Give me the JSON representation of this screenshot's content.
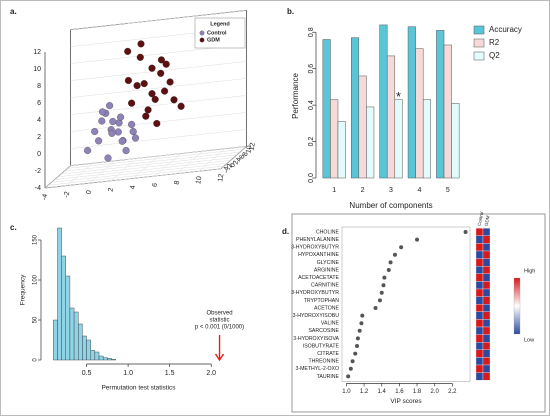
{
  "chart_data": [
    {
      "type": "scatter3d",
      "panel_label": "a.",
      "series": [
        {
          "name": "GDM",
          "color": "#5c1010",
          "x": [
            3,
            4,
            5,
            6,
            3.5,
            4.5,
            5.5,
            7,
            2.5,
            6.5,
            4,
            5,
            3,
            6,
            7.5,
            4,
            5,
            3.5,
            6,
            5
          ],
          "y": [
            2,
            3,
            1,
            2,
            4,
            2,
            3,
            1,
            3,
            2,
            4,
            1,
            0,
            3,
            2,
            1,
            4,
            2,
            0,
            3
          ],
          "values": [
            4,
            6,
            8,
            5,
            9,
            3,
            7,
            4,
            10,
            6,
            2,
            5,
            7,
            8,
            3,
            11,
            1,
            6,
            9,
            4
          ]
        },
        {
          "name": "Control",
          "color": "#8f82b8",
          "x": [
            0,
            1,
            2,
            -1,
            1.5,
            3,
            0.5,
            2.5,
            1,
            -0.5,
            2,
            3.5,
            0,
            1,
            2,
            1.5,
            0.5,
            2.5,
            3,
            1
          ],
          "y": [
            2,
            3,
            1,
            2,
            4,
            2,
            3,
            0,
            1,
            3,
            2,
            1,
            4,
            2,
            3,
            0,
            1,
            2,
            3,
            4
          ],
          "values": [
            0,
            1,
            2,
            -1,
            0.5,
            1.5,
            3,
            0,
            -2,
            1,
            2.5,
            0,
            2,
            4,
            -0.5,
            1,
            3.5,
            -1.5,
            0.5,
            1.8
          ]
        }
      ],
      "legend_title": "Legend",
      "xlim": [
        -4,
        12
      ],
      "xticks": [
        -4,
        -2,
        0,
        2,
        4,
        6,
        8,
        10,
        12
      ],
      "ylim": [
        -4,
        12
      ],
      "yticks": [
        -4,
        -2,
        0,
        2,
        4,
        6,
        8,
        10,
        12
      ],
      "zlim": [
        -4,
        12
      ],
      "zticks": [
        -4,
        -2,
        0,
        2,
        4,
        6,
        8,
        10,
        12
      ]
    },
    {
      "type": "bar",
      "panel_label": "b.",
      "categories": [
        "1",
        "2",
        "3",
        "4",
        "5"
      ],
      "series": [
        {
          "name": "Accuracy",
          "color": "#5bc5d8",
          "values": [
            0.76,
            0.77,
            0.84,
            0.83,
            0.81
          ]
        },
        {
          "name": "R2",
          "color": "#f6dada",
          "values": [
            0.43,
            0.56,
            0.67,
            0.71,
            0.73
          ]
        },
        {
          "name": "Q2",
          "color": "#e3fbfb",
          "values": [
            0.31,
            0.39,
            0.43,
            0.43,
            0.41
          ]
        }
      ],
      "annotation": "*",
      "x_label": "Number of components",
      "y_label": "Performance",
      "ylim": [
        0,
        0.9
      ],
      "yticks": [
        {
          "value": 0,
          "label": "0.0"
        },
        0.2,
        0.4,
        0.6,
        0.8
      ]
    },
    {
      "type": "histogram",
      "panel_label": "c.",
      "bins": [
        0.1,
        0.15,
        0.2,
        0.25,
        0.3,
        0.35,
        0.4,
        0.45,
        0.5,
        0.55,
        0.6,
        0.65,
        0.7,
        0.75,
        0.8,
        0.85
      ],
      "values": [
        50,
        165,
        130,
        105,
        65,
        60,
        45,
        30,
        25,
        12,
        10,
        5,
        3,
        2,
        1
      ],
      "color": "#8fd3e6",
      "annotation": {
        "lines": [
          "Observed",
          "statistic",
          "p < 0.001 (0/1000)"
        ],
        "x": 2.1
      },
      "x_label": "Permutation test statistics",
      "y_label": "Frequency",
      "xlim": [
        0,
        2.25
      ],
      "xticks": [
        0.5,
        {
          "value": 1,
          "label": "1.0"
        },
        1.5,
        {
          "value": 2,
          "label": "2.0"
        }
      ],
      "ylim": [
        0,
        175
      ],
      "yticks": [
        0,
        50,
        100,
        150
      ]
    },
    {
      "type": "dot",
      "panel_label": "d.",
      "categories": [
        "CHOLINE",
        "PHENYLALANINE",
        "3-HYDROXYBUTYR",
        "HYPOXANTHINE",
        "GLYCINE",
        "ARGININE",
        "ACETOACETATE",
        "CARNITINE",
        "3-HYDROXYBUTYR",
        "TRYPTOPHAN",
        "ACETONE",
        "3-HYDROXYISOBU",
        "VALINE",
        "SARCOSINE",
        "3-HYDROXYISOVA",
        "ISOBUTYRATE",
        "CITRATE",
        "THREONINE",
        "3-METHYL-2-OXO",
        "TAURINE"
      ],
      "values": [
        2.35,
        1.8,
        1.62,
        1.55,
        1.5,
        1.48,
        1.43,
        1.42,
        1.4,
        1.38,
        1.33,
        1.18,
        1.17,
        1.15,
        1.13,
        1.12,
        1.1,
        1.07,
        1.05,
        1.02
      ],
      "color": "#555555",
      "x_label": "VIP scores",
      "xlim": [
        0.95,
        2.4
      ],
      "xticks": [
        {
          "value": 1,
          "label": "1.0"
        },
        1.2,
        1.4,
        1.6,
        1.8,
        {
          "value": 2,
          "label": "2.0"
        },
        2.2
      ],
      "heatmap": {
        "columns": [
          "Control",
          "GDM"
        ],
        "colors": [
          [
            "#d7191c",
            "#2c4ba0"
          ],
          [
            "#2c4ba0",
            "#d7191c"
          ],
          [
            "#d7191c",
            "#2c4ba0"
          ],
          [
            "#2c4ba0",
            "#d7191c"
          ],
          [
            "#d7191c",
            "#2c4ba0"
          ],
          [
            "#2c4ba0",
            "#d7191c"
          ],
          [
            "#d7191c",
            "#2c4ba0"
          ],
          [
            "#2c4ba0",
            "#d7191c"
          ],
          [
            "#d7191c",
            "#2c4ba0"
          ],
          [
            "#2c4ba0",
            "#d7191c"
          ],
          [
            "#d7191c",
            "#2c4ba0"
          ],
          [
            "#2c4ba0",
            "#d7191c"
          ],
          [
            "#d7191c",
            "#2c4ba0"
          ],
          [
            "#2c4ba0",
            "#d7191c"
          ],
          [
            "#d7191c",
            "#2c4ba0"
          ],
          [
            "#2c4ba0",
            "#d7191c"
          ],
          [
            "#d7191c",
            "#2c4ba0"
          ],
          [
            "#2c4ba0",
            "#d7191c"
          ],
          [
            "#d7191c",
            "#2c4ba0"
          ],
          [
            "#2c4ba0",
            "#d7191c"
          ]
        ],
        "scale_labels": [
          "High",
          "Low"
        ],
        "high_color": "#d7191c",
        "low_color": "#2c4ba0"
      }
    }
  ]
}
